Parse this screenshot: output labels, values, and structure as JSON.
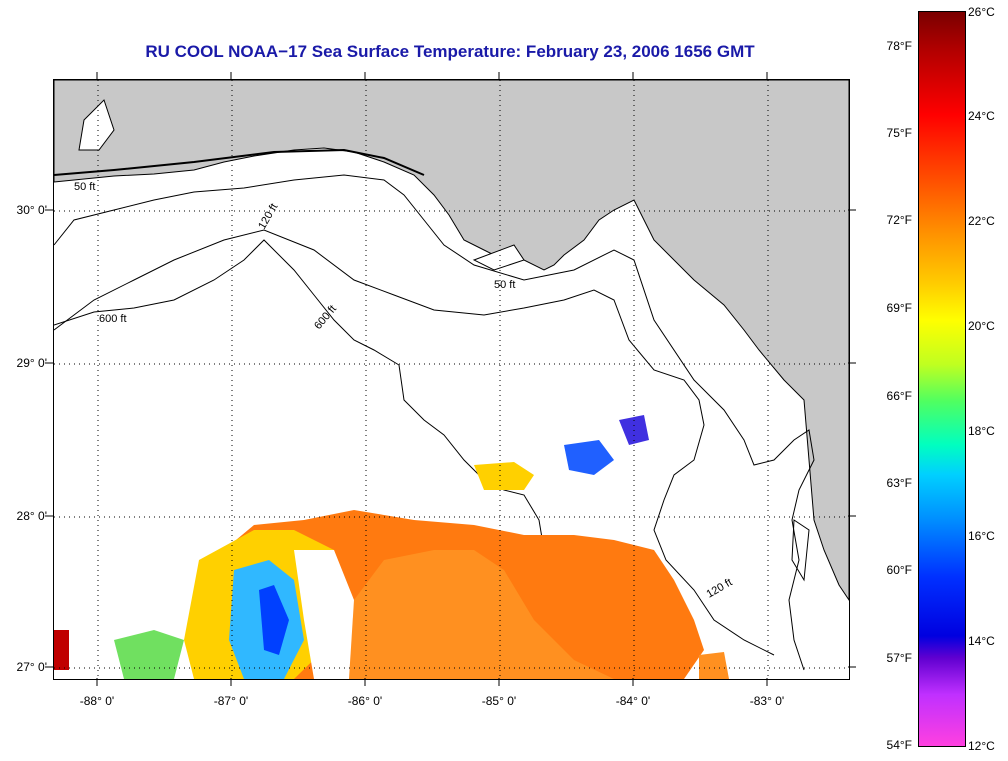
{
  "title": "RU COOL  NOAA−17  Sea Surface Temperature:  February 23, 2006 1656 GMT",
  "latitude_labels": [
    "30° 0'",
    "29° 0'",
    "28° 0'",
    "27° 0'"
  ],
  "longitude_labels": [
    "-88° 0'",
    "-87° 0'",
    "-86° 0'",
    "-85° 0'",
    "-84° 0'",
    "-83° 0'"
  ],
  "isobath_labels": [
    "50 ft",
    "120 ft",
    "600 ft"
  ],
  "colorbar": {
    "fahrenheit_labels": [
      "78°F",
      "75°F",
      "72°F",
      "69°F",
      "66°F",
      "63°F",
      "60°F",
      "57°F",
      "54°F"
    ],
    "celsius_labels": [
      "26°C",
      "24°C",
      "22°C",
      "20°C",
      "18°C",
      "16°C",
      "14°C",
      "12°C"
    ]
  },
  "colors": {
    "title": "#1a1aa8",
    "land": "#c8c8c8",
    "warm": "#ff7a10",
    "cool": "#0040ff",
    "mid": "#ffd000"
  }
}
